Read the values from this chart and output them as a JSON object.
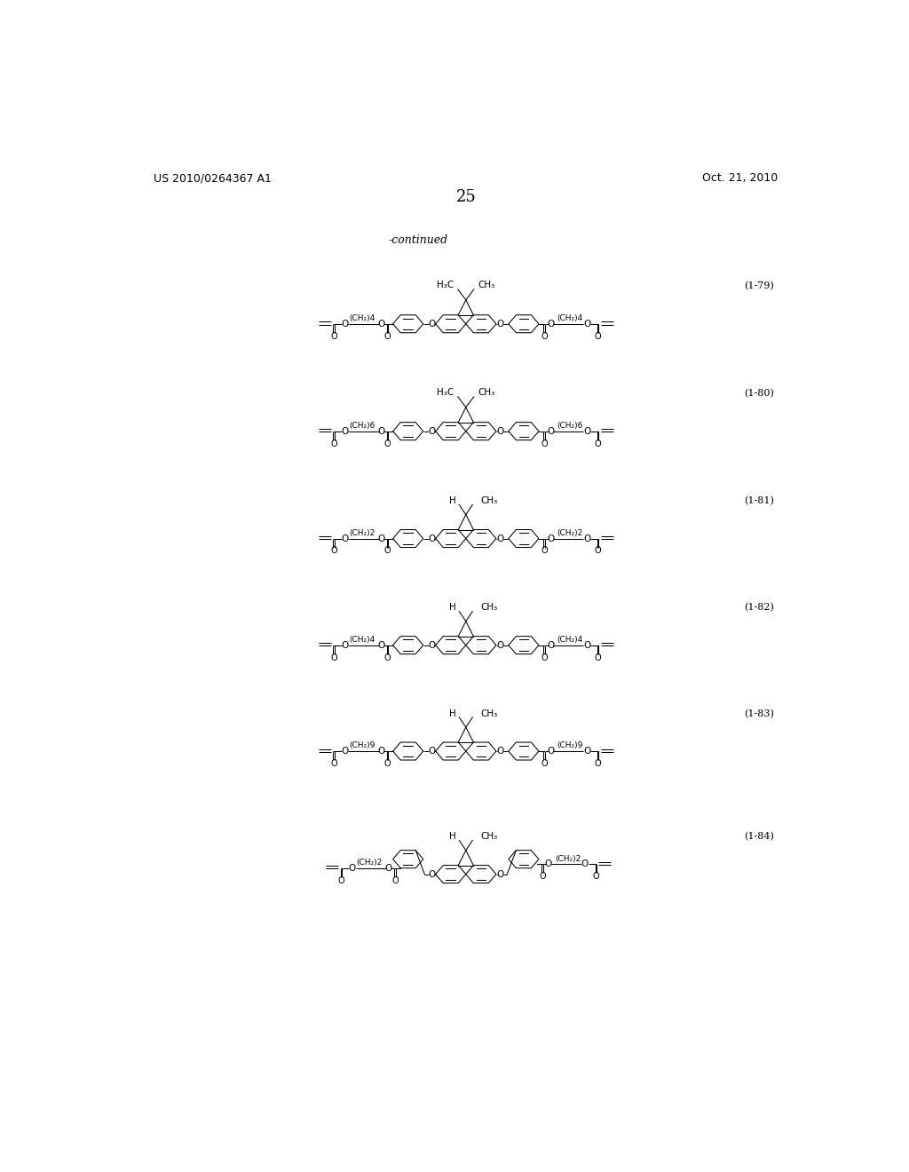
{
  "page_header_left": "US 2010/0264367 A1",
  "page_header_right": "Oct. 21, 2010",
  "page_number": "25",
  "continued_label": "-continued",
  "background_color": "#ffffff",
  "compounds": [
    {
      "label": "(1-79)",
      "n": 4,
      "is_dimethyl": true,
      "is_meta": false,
      "sub1": "H₃C",
      "sub2": "CH₃"
    },
    {
      "label": "(1-80)",
      "n": 6,
      "is_dimethyl": true,
      "is_meta": false,
      "sub1": "H₃C",
      "sub2": "CH₃"
    },
    {
      "label": "(1-81)",
      "n": 2,
      "is_dimethyl": false,
      "is_meta": false,
      "sub1": "H",
      "sub2": "CH₃"
    },
    {
      "label": "(1-82)",
      "n": 4,
      "is_dimethyl": false,
      "is_meta": false,
      "sub1": "H",
      "sub2": "CH₃"
    },
    {
      "label": "(1-83)",
      "n": 9,
      "is_dimethyl": false,
      "is_meta": false,
      "sub1": "H",
      "sub2": "CH₃"
    },
    {
      "label": "(1-84)",
      "n": 2,
      "is_dimethyl": false,
      "is_meta": true,
      "sub1": "H",
      "sub2": "CH₃"
    }
  ],
  "compound_ytops": [
    268,
    425,
    582,
    738,
    893,
    1073
  ]
}
